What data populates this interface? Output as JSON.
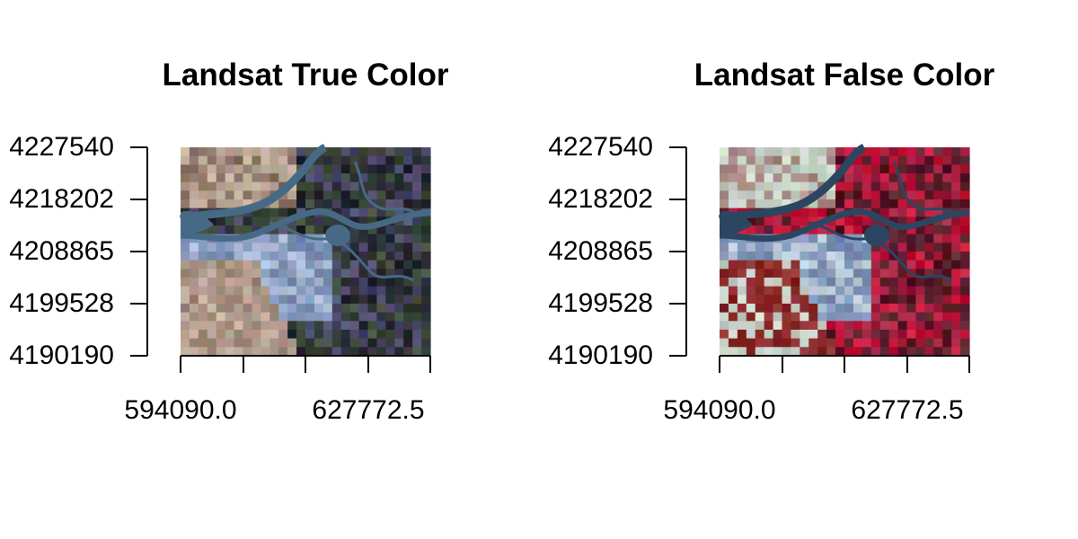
{
  "maps": [
    {
      "title": "Landsat True Color",
      "y_ticks": [
        "4227540",
        "4218202",
        "4208865",
        "4199528",
        "4190190"
      ],
      "x_ticks": [
        "594090.0",
        "627772.5"
      ],
      "palette": {
        "land_dry": "#bfa999",
        "land_brown": "#8c7466",
        "urban": "#7f93b8",
        "urban_light": "#a9b8d6",
        "vegetation": "#3d4a3a",
        "fields_dark": "#2a2d33",
        "fields_purple": "#4b4a6a",
        "water": "#466a86",
        "mountains": "#a38d7f"
      }
    },
    {
      "title": "Landsat False Color",
      "y_ticks": [
        "4227540",
        "4218202",
        "4208865",
        "4199528",
        "4190190"
      ],
      "x_ticks": [
        "594090.0",
        "627772.5"
      ],
      "palette": {
        "land_dry": "#c9d2c8",
        "land_brown": "#a98a84",
        "urban": "#7f93b8",
        "urban_light": "#b9c9d8",
        "vegetation": "#c4163a",
        "fields_dark": "#5a1e2b",
        "fields_purple": "#a3203f",
        "water": "#2b4660",
        "mountains": "#8a2a2a"
      }
    }
  ]
}
